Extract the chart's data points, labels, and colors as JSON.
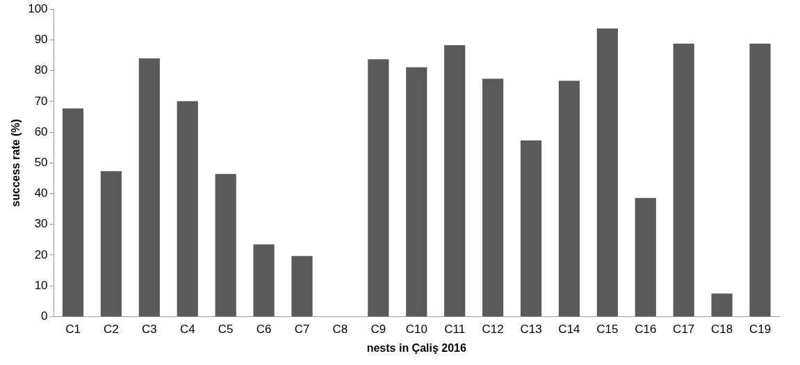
{
  "chart_data": {
    "type": "bar",
    "xlabel": "nests in Çaliş 2016",
    "ylabel": "success rate (%)",
    "categories": [
      "C1",
      "C2",
      "C3",
      "C4",
      "C5",
      "C6",
      "C7",
      "C8",
      "C9",
      "C10",
      "C11",
      "C12",
      "C13",
      "C14",
      "C15",
      "C16",
      "C17",
      "C18",
      "C19"
    ],
    "values": [
      67.7,
      47.3,
      84,
      70.1,
      46.4,
      23.5,
      19.7,
      0,
      83.7,
      81.1,
      88.3,
      77.4,
      57.3,
      76.7,
      93.7,
      38.6,
      88.8,
      7.5,
      88.8
    ],
    "color": "#5a5a5a",
    "ylim": [
      0,
      100
    ],
    "yticks": [
      0,
      10,
      20,
      30,
      40,
      50,
      60,
      70,
      80,
      90,
      100
    ],
    "grid": false,
    "legend": false
  }
}
